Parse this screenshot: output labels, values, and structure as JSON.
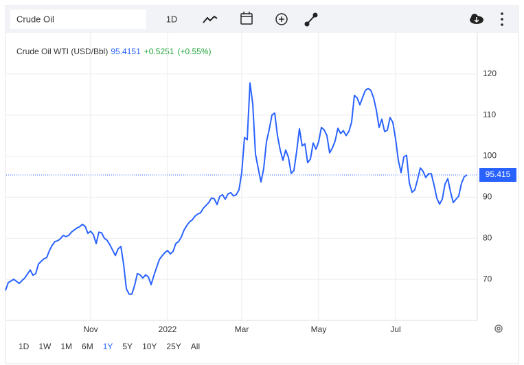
{
  "toolbar": {
    "symbol": "Crude Oil",
    "interval": "1D"
  },
  "chart_data": {
    "type": "line",
    "title": "Crude Oil WTI (USD/Bbl)",
    "price": 95.4151,
    "change": "+0.5251",
    "change_pct": "(+0.55%)",
    "price_line": 95.415,
    "categories": [
      null,
      null,
      null,
      null,
      null,
      null,
      null,
      null,
      null,
      null,
      null,
      null,
      null,
      null,
      null,
      null,
      null,
      null,
      null,
      null,
      null,
      null,
      null,
      null,
      null,
      null,
      null,
      null,
      null,
      null,
      null,
      "Nov",
      null,
      null,
      null,
      null,
      null,
      null,
      null,
      null,
      null,
      null,
      null,
      null,
      null,
      null,
      null,
      null,
      null,
      null,
      null,
      null,
      null,
      null,
      null,
      null,
      null,
      null,
      null,
      "2022",
      null,
      null,
      null,
      null,
      null,
      null,
      null,
      null,
      null,
      null,
      null,
      null,
      null,
      null,
      null,
      null,
      null,
      null,
      null,
      null,
      null,
      null,
      null,
      null,
      null,
      null,
      "Mar",
      null,
      null,
      null,
      null,
      null,
      null,
      null,
      null,
      null,
      null,
      null,
      null,
      null,
      null,
      null,
      null,
      null,
      null,
      null,
      null,
      null,
      null,
      null,
      null,
      null,
      null,
      null,
      "May",
      null,
      null,
      null,
      null,
      null,
      null,
      null,
      null,
      null,
      null,
      null,
      null,
      null,
      null,
      null,
      null,
      null,
      null,
      null,
      null,
      null,
      null,
      null,
      null,
      null,
      null,
      null,
      "Jul",
      null,
      null,
      null,
      null,
      null,
      null,
      null,
      null,
      null,
      null,
      null,
      null,
      null,
      null,
      null,
      null,
      null,
      null,
      null,
      null,
      null,
      null,
      null,
      null,
      null,
      null
    ],
    "series": [
      {
        "name": "Crude Oil WTI",
        "color": "#2962ff",
        "values": [
          67.3,
          69.2,
          69.6,
          70,
          69.5,
          69,
          69.7,
          70.3,
          71.3,
          72.3,
          71,
          71.4,
          73.7,
          74.4,
          75,
          75.3,
          77,
          78.3,
          79.2,
          79.4,
          79.9,
          80.7,
          80.4,
          80.7,
          81.5,
          82,
          82.5,
          82.8,
          83.4,
          82.9,
          81.2,
          81.7,
          80.9,
          78.7,
          81.5,
          81.3,
          80,
          79.5,
          78.4,
          77.1,
          75.8,
          77.4,
          78,
          73.7,
          67.7,
          66.4,
          66.4,
          68.5,
          71.4,
          71.1,
          70.3,
          71.1,
          70.6,
          68.7,
          70.9,
          72.9,
          74.8,
          75.7,
          76.5,
          77,
          76.2,
          76.8,
          78.7,
          79.2,
          80.3,
          82,
          83.1,
          84,
          84.5,
          85.4,
          85.9,
          86.2,
          87.3,
          88,
          88.7,
          89.8,
          89.6,
          88.2,
          90.2,
          90.6,
          89.5,
          90.8,
          91.1,
          90.3,
          90.6,
          91.8,
          96,
          104.5,
          104,
          117.8,
          112.8,
          100.5,
          97,
          93.7,
          97,
          103.5,
          106.5,
          110,
          110.5,
          105,
          101.5,
          99,
          101.5,
          99.7,
          95.8,
          96.5,
          101.2,
          106.7,
          102.5,
          103,
          98.4,
          99.3,
          103.2,
          101.7,
          103.5,
          107,
          106.4,
          105,
          100.8,
          102,
          103.7,
          106.8,
          105.5,
          106.2,
          105,
          106,
          108.3,
          114.8,
          114.2,
          112.5,
          114.3,
          116,
          116.5,
          116,
          114.2,
          111.2,
          107,
          109,
          106,
          106.3,
          109.4,
          108.2,
          104.2,
          99,
          96,
          99.8,
          100.2,
          93.5,
          91.2,
          91.8,
          94.3,
          97.1,
          96.3,
          94.8,
          95.7,
          95.7,
          93,
          89.8,
          88.3,
          89.5,
          93.2,
          94.5,
          91.3,
          88.7,
          89.5,
          90.3,
          93.4,
          95,
          95.42
        ]
      }
    ],
    "ylim": [
      60,
      130
    ],
    "yticks": [
      70,
      80,
      90,
      100,
      110,
      120
    ],
    "grid": true,
    "ranges": [
      "1D",
      "1W",
      "1M",
      "6M",
      "1Y",
      "5Y",
      "10Y",
      "25Y",
      "All"
    ],
    "active_range": 4
  }
}
